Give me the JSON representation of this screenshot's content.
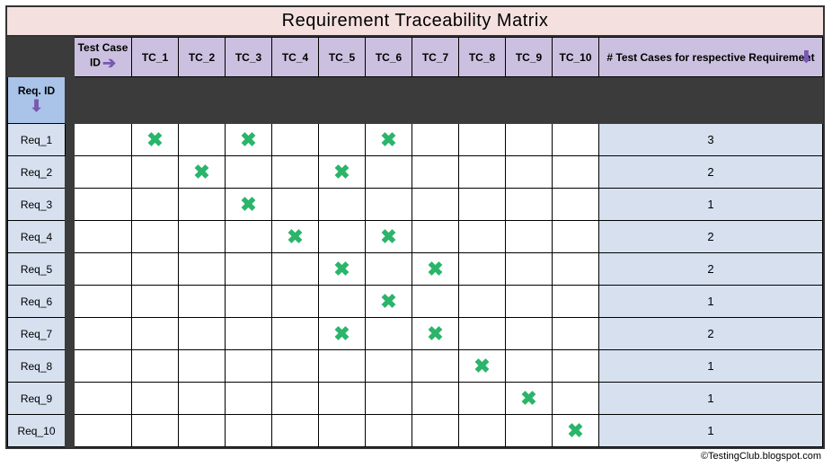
{
  "title": "Requirement Traceability Matrix",
  "headers": {
    "test_case_id": "Test Case ID",
    "req_id": "Req. ID",
    "summary": "# Test Cases for respective Requirement"
  },
  "test_cases": [
    "TC_1",
    "TC_2",
    "TC_3",
    "TC_4",
    "TC_5",
    "TC_6",
    "TC_7",
    "TC_8",
    "TC_9",
    "TC_10"
  ],
  "requirements": [
    "Req_1",
    "Req_2",
    "Req_3",
    "Req_4",
    "Req_5",
    "Req_6",
    "Req_7",
    "Req_8",
    "Req_9",
    "Req_10"
  ],
  "marks": {
    "Req_1": [
      "TC_1",
      "TC_3",
      "TC_6"
    ],
    "Req_2": [
      "TC_2",
      "TC_5"
    ],
    "Req_3": [
      "TC_3"
    ],
    "Req_4": [
      "TC_4",
      "TC_6"
    ],
    "Req_5": [
      "TC_5",
      "TC_7"
    ],
    "Req_6": [
      "TC_6"
    ],
    "Req_7": [
      "TC_5",
      "TC_7"
    ],
    "Req_8": [
      "TC_8"
    ],
    "Req_9": [
      "TC_9"
    ],
    "Req_10": [
      "TC_10"
    ]
  },
  "counts": {
    "Req_1": 3,
    "Req_2": 2,
    "Req_3": 1,
    "Req_4": 2,
    "Req_5": 2,
    "Req_6": 1,
    "Req_7": 2,
    "Req_8": 1,
    "Req_9": 1,
    "Req_10": 1
  },
  "colors": {
    "title_bg": "#f5e0e0",
    "dark_bg": "#3b3b3b",
    "purple_hdr_bg": "#ccc0e0",
    "blue_hdr_bg": "#a9c4e8",
    "req_cell_bg": "#d6e0ef",
    "check_color": "#2ab56a",
    "arrow_color": "#7858b0",
    "grid_bg": "#ffffff",
    "border": "#000000"
  },
  "check_glyph": "✖",
  "footer": "©TestingClub.blogspot.com"
}
